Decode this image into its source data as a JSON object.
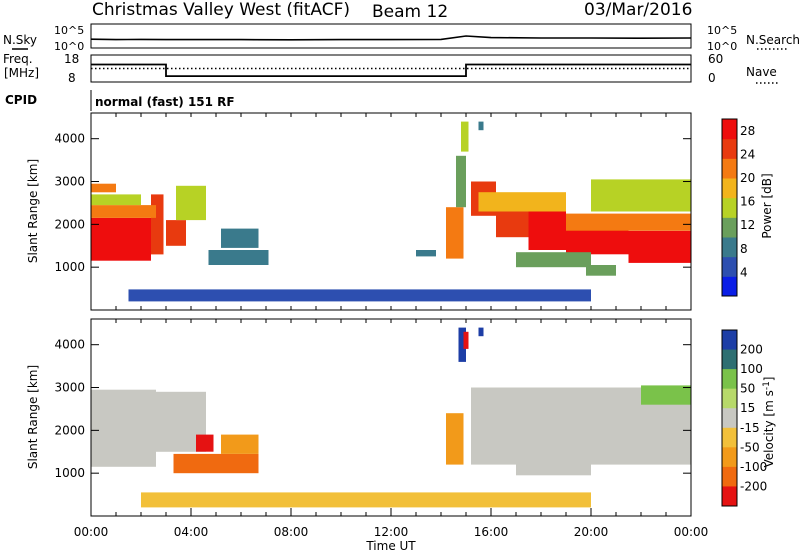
{
  "header": {
    "station": "Christmas Valley West (fitACF)",
    "beam": "Beam 12",
    "date": "03/Mar/2016"
  },
  "chart_data": [
    {
      "type": "line",
      "panel": "noise",
      "left_label": "N.Sky",
      "right_label": "N.Search",
      "left_ticks": [
        "10^5",
        "10^0"
      ],
      "right_ticks": [
        "10^5",
        "10^0"
      ],
      "scale": "log",
      "xlim": [
        "00:00",
        "24:00"
      ],
      "series": [
        {
          "name": "N.Sky",
          "style": "solid"
        },
        {
          "name": "N.Search",
          "style": "dotted"
        }
      ],
      "x": [
        0,
        1,
        2,
        3,
        4,
        6,
        8,
        10,
        12,
        14,
        15,
        16,
        18,
        20,
        22,
        24
      ],
      "n_sky_log": [
        1.2,
        1.1,
        1.15,
        1.1,
        1.1,
        1.1,
        1.05,
        1.1,
        1.1,
        1.15,
        2.0,
        1.6,
        1.5,
        1.5,
        1.45,
        1.5
      ]
    },
    {
      "type": "line",
      "panel": "frequency",
      "left_label": "Freq. [MHz]",
      "right_label": "Nave",
      "left_ticks": [
        "18",
        "8"
      ],
      "right_ticks": [
        "60",
        "0"
      ],
      "ylim_left": [
        8,
        18
      ],
      "ylim_right": [
        0,
        60
      ],
      "series": [
        {
          "name": "Freq.",
          "style": "solid",
          "points": [
            [
              0,
              14.5
            ],
            [
              3,
              14.5
            ],
            [
              3,
              10.2
            ],
            [
              15,
              10.2
            ],
            [
              15,
              14.5
            ],
            [
              24,
              14.5
            ]
          ]
        },
        {
          "name": "Nave",
          "style": "dotted",
          "points": [
            [
              0,
              30
            ],
            [
              24,
              30
            ]
          ]
        }
      ]
    },
    {
      "type": "table",
      "panel": "cpid",
      "label": "CPID",
      "text": "normal (fast) 151 RF"
    },
    {
      "type": "heatmap",
      "panel": "power",
      "ylabel": "Slant Range [km]",
      "xlabel": "",
      "ylim": [
        0,
        4600
      ],
      "y_ticks": [
        1000,
        2000,
        3000,
        4000
      ],
      "colorbar_label": "Power [dB]",
      "colorbar_ticks": [
        4,
        8,
        12,
        16,
        20,
        24,
        28
      ],
      "colorbar_range": [
        0,
        30
      ],
      "cells": [
        {
          "t0": 0.0,
          "t1": 2.4,
          "r0": 1150,
          "r1": 2150,
          "v": 28
        },
        {
          "t0": 2.4,
          "t1": 2.9,
          "r0": 1300,
          "r1": 2700,
          "v": 26
        },
        {
          "t0": 0.0,
          "t1": 2.6,
          "r0": 2150,
          "r1": 2450,
          "v": 22
        },
        {
          "t0": 0.0,
          "t1": 2.0,
          "r0": 2450,
          "r1": 2700,
          "v": 16
        },
        {
          "t0": 0.0,
          "t1": 1.0,
          "r0": 2750,
          "r1": 2950,
          "v": 20
        },
        {
          "t0": 3.0,
          "t1": 3.8,
          "r0": 1500,
          "r1": 2100,
          "v": 24
        },
        {
          "t0": 3.4,
          "t1": 4.6,
          "r0": 2100,
          "r1": 2900,
          "v": 14
        },
        {
          "t0": 4.7,
          "t1": 7.1,
          "r0": 1050,
          "r1": 1400,
          "v": 7
        },
        {
          "t0": 5.2,
          "t1": 6.7,
          "r0": 1450,
          "r1": 1900,
          "v": 9
        },
        {
          "t0": 13.0,
          "t1": 13.8,
          "r0": 1250,
          "r1": 1400,
          "v": 8
        },
        {
          "t0": 14.2,
          "t1": 14.9,
          "r0": 1200,
          "r1": 2400,
          "v": 20
        },
        {
          "t0": 14.6,
          "t1": 15.0,
          "r0": 2400,
          "r1": 3600,
          "v": 13
        },
        {
          "t0": 14.8,
          "t1": 15.1,
          "r0": 3700,
          "r1": 4400,
          "v": 14
        },
        {
          "t0": 15.5,
          "t1": 15.7,
          "r0": 4200,
          "r1": 4400,
          "v": 8
        },
        {
          "t0": 15.2,
          "t1": 16.2,
          "r0": 2200,
          "r1": 3000,
          "v": 24
        },
        {
          "t0": 16.2,
          "t1": 17.5,
          "r0": 1700,
          "r1": 2500,
          "v": 26
        },
        {
          "t0": 17.5,
          "t1": 19.0,
          "r0": 1400,
          "r1": 2300,
          "v": 28
        },
        {
          "t0": 19.0,
          "t1": 21.5,
          "r0": 1300,
          "r1": 2000,
          "v": 28
        },
        {
          "t0": 21.5,
          "t1": 24.0,
          "r0": 1100,
          "r1": 1850,
          "v": 28
        },
        {
          "t0": 15.5,
          "t1": 19.0,
          "r0": 2300,
          "r1": 2750,
          "v": 18
        },
        {
          "t0": 19.0,
          "t1": 24.0,
          "r0": 1850,
          "r1": 2250,
          "v": 20
        },
        {
          "t0": 17.0,
          "t1": 20.0,
          "r0": 1000,
          "r1": 1350,
          "v": 13
        },
        {
          "t0": 19.8,
          "t1": 21.0,
          "r0": 800,
          "r1": 1050,
          "v": 10
        },
        {
          "t0": 20.0,
          "t1": 24.0,
          "r0": 2300,
          "r1": 3050,
          "v": 14
        },
        {
          "t0": 1.5,
          "t1": 20.0,
          "r0": 200,
          "r1": 480,
          "v": 6
        }
      ]
    },
    {
      "type": "heatmap",
      "panel": "velocity",
      "ylabel": "Slant Range [km]",
      "xlabel": "Time UT",
      "ylim": [
        0,
        4600
      ],
      "y_ticks": [
        1000,
        2000,
        3000,
        4000
      ],
      "x_ticks": [
        "00:00",
        "04:00",
        "08:00",
        "12:00",
        "16:00",
        "20:00",
        "00:00"
      ],
      "colorbar_label": "Velocity [m s^-1]",
      "colorbar_ticks": [
        200,
        100,
        50,
        15,
        -15,
        -50,
        -100,
        -200
      ],
      "cells": [
        {
          "t0": 0.0,
          "t1": 2.6,
          "r0": 1150,
          "r1": 2950,
          "v": 0
        },
        {
          "t0": 2.6,
          "t1": 4.6,
          "r0": 1500,
          "r1": 2900,
          "v": 0
        },
        {
          "t0": 4.2,
          "t1": 4.9,
          "r0": 1500,
          "r1": 1900,
          "v": -160
        },
        {
          "t0": 3.3,
          "t1": 6.7,
          "r0": 1000,
          "r1": 1450,
          "v": -90
        },
        {
          "t0": 5.2,
          "t1": 6.7,
          "r0": 1450,
          "r1": 1900,
          "v": -70
        },
        {
          "t0": 2.0,
          "t1": 20.0,
          "r0": 200,
          "r1": 550,
          "v": -30
        },
        {
          "t0": 14.2,
          "t1": 14.9,
          "r0": 1200,
          "r1": 2400,
          "v": -60
        },
        {
          "t0": 14.7,
          "t1": 15.0,
          "r0": 3600,
          "r1": 4400,
          "v": 180
        },
        {
          "t0": 14.9,
          "t1": 15.1,
          "r0": 3900,
          "r1": 4300,
          "v": -220
        },
        {
          "t0": 15.5,
          "t1": 15.7,
          "r0": 4200,
          "r1": 4400,
          "v": 150
        },
        {
          "t0": 15.2,
          "t1": 24.0,
          "r0": 1200,
          "r1": 3000,
          "v": 0
        },
        {
          "t0": 17.0,
          "t1": 20.0,
          "r0": 950,
          "r1": 1300,
          "v": 0
        },
        {
          "t0": 22.0,
          "t1": 24.0,
          "r0": 2600,
          "r1": 3050,
          "v": 40
        }
      ]
    }
  ]
}
